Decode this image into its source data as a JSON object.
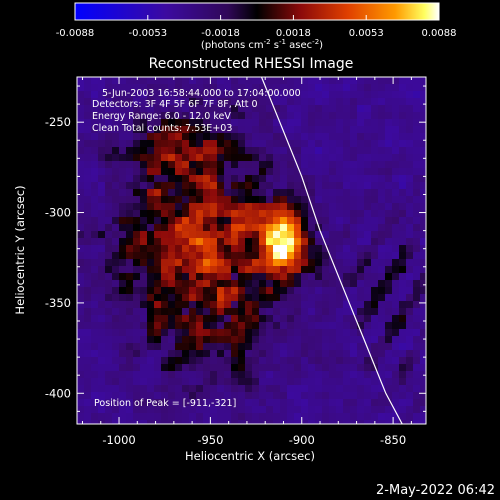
{
  "colorbar": {
    "ticks": [
      "-0.0088",
      "-0.0053",
      "-0.0018",
      "0.0018",
      "0.0053",
      "0.0088"
    ],
    "units_main": "(photons cm",
    "units_exp1": "-2",
    "units_mid": " s",
    "units_exp2": "-1",
    "units_end": " asec",
    "units_exp3": "-2",
    "units_close": ")",
    "range": [
      -0.0088,
      0.0088
    ]
  },
  "title": "Reconstructed RHESSI Image",
  "annotations": {
    "time": "5-Jun-2003 16:58:44.000 to 17:04:00.000",
    "detectors": "Detectors: 3F 4F 5F 6F 7F 8F, Att 0",
    "energy": "Energy Range: 6.0 - 12.0 keV",
    "clean": "Clean     Total counts: 7.53E+03",
    "peak": "Position of Peak = [-911,-321]"
  },
  "footer": {
    "timestamp": "2-May-2022 06:42"
  },
  "chart_data": {
    "type": "heatmap",
    "title": "Reconstructed RHESSI Image",
    "xlabel": "Heliocentric X (arcsec)",
    "ylabel": "Heliocentric Y (arcsec)",
    "xlim": [
      -1023,
      -832
    ],
    "ylim": [
      -417,
      -225
    ],
    "x_ticks": [
      -1000,
      -950,
      -900,
      -850
    ],
    "y_ticks": [
      -250,
      -300,
      -350,
      -400
    ],
    "x_tick_labels": [
      "-1000",
      "-950",
      "-900",
      "-850"
    ],
    "y_tick_labels": [
      "-250",
      "-300",
      "-350",
      "-400"
    ],
    "peak": {
      "x": -911,
      "y": -321
    },
    "limb": [
      [
        -922,
        -225
      ],
      [
        -912,
        -250
      ],
      [
        -900,
        -280
      ],
      [
        -890,
        -310
      ],
      [
        -878,
        -340
      ],
      [
        -866,
        -370
      ],
      [
        -854,
        -400
      ],
      [
        -845,
        -417
      ]
    ],
    "colormap": [
      "#0000ff",
      "#3c0aa0",
      "#3a0a6e",
      "#000000",
      "#8c0a0a",
      "#e04000",
      "#ff9a00",
      "#ffff60",
      "#ffffff"
    ]
  }
}
